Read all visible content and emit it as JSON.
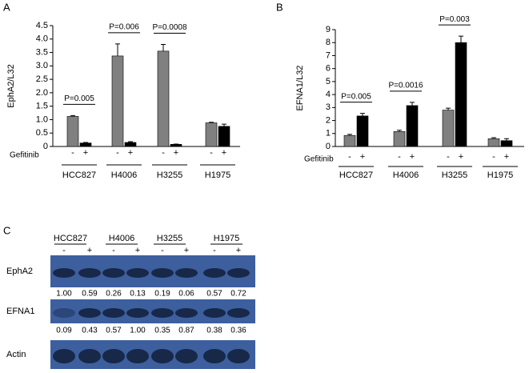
{
  "chart_data": [
    {
      "type": "bar",
      "panel_label": "A",
      "ylabel": "EphA2/L32",
      "treatment_label": "Gefitinib",
      "categories": [
        "HCC827",
        "H4006",
        "H3255",
        "H1975"
      ],
      "series": [
        {
          "name": "-",
          "color": "#808080",
          "values": [
            1.12,
            3.37,
            3.55,
            0.88
          ],
          "errors": [
            0.03,
            0.45,
            0.25,
            0.02
          ]
        },
        {
          "name": "+",
          "color": "#000000",
          "values": [
            0.13,
            0.15,
            0.08,
            0.75
          ],
          "errors": [
            0.02,
            0.03,
            0.01,
            0.08
          ]
        }
      ],
      "p_values": [
        "P=0.005",
        "P=0.006",
        "P=0.0008",
        null
      ],
      "ylim": [
        0,
        4.5
      ],
      "yticks": [
        0,
        0.5,
        {
          "value": 1,
          "label": "1.0"
        },
        1.5,
        {
          "value": 2,
          "label": "2.0"
        },
        2.5,
        {
          "value": 3,
          "label": "3.0"
        },
        3.5,
        {
          "value": 4,
          "label": "4.0"
        },
        4.5
      ]
    },
    {
      "type": "bar",
      "panel_label": "B",
      "ylabel": "EFNA1/L32",
      "treatment_label": "Gefitinib",
      "categories": [
        "HCC827",
        "H4006",
        "H3255",
        "H1975"
      ],
      "series": [
        {
          "name": "-",
          "color": "#808080",
          "values": [
            0.85,
            1.15,
            2.8,
            0.6
          ],
          "errors": [
            0.08,
            0.1,
            0.15,
            0.08
          ]
        },
        {
          "name": "+",
          "color": "#000000",
          "values": [
            2.35,
            3.15,
            8.0,
            0.45
          ],
          "errors": [
            0.2,
            0.25,
            0.5,
            0.15
          ]
        }
      ],
      "p_values": [
        "P=0.005",
        "P=0.0016",
        "P=0.003",
        null
      ],
      "ylim": [
        0,
        9
      ],
      "yticks": [
        0,
        1,
        2,
        3,
        4,
        5,
        6,
        7,
        8,
        9
      ]
    }
  ],
  "blot": {
    "panel_label": "C",
    "groups": [
      "HCC827",
      "H4006",
      "H3255",
      "H1975"
    ],
    "treatments": [
      "-",
      "+"
    ],
    "rows": [
      {
        "label": "EphA2",
        "values": [
          "1.00",
          "0.59",
          "0.26",
          "0.13",
          "0.19",
          "0.06",
          "0.57",
          "0.72"
        ]
      },
      {
        "label": "EFNA1",
        "values": [
          "0.09",
          "0.43",
          "0.57",
          "1.00",
          "0.35",
          "0.87",
          "0.38",
          "0.36"
        ]
      },
      {
        "label": "Actin"
      }
    ]
  }
}
